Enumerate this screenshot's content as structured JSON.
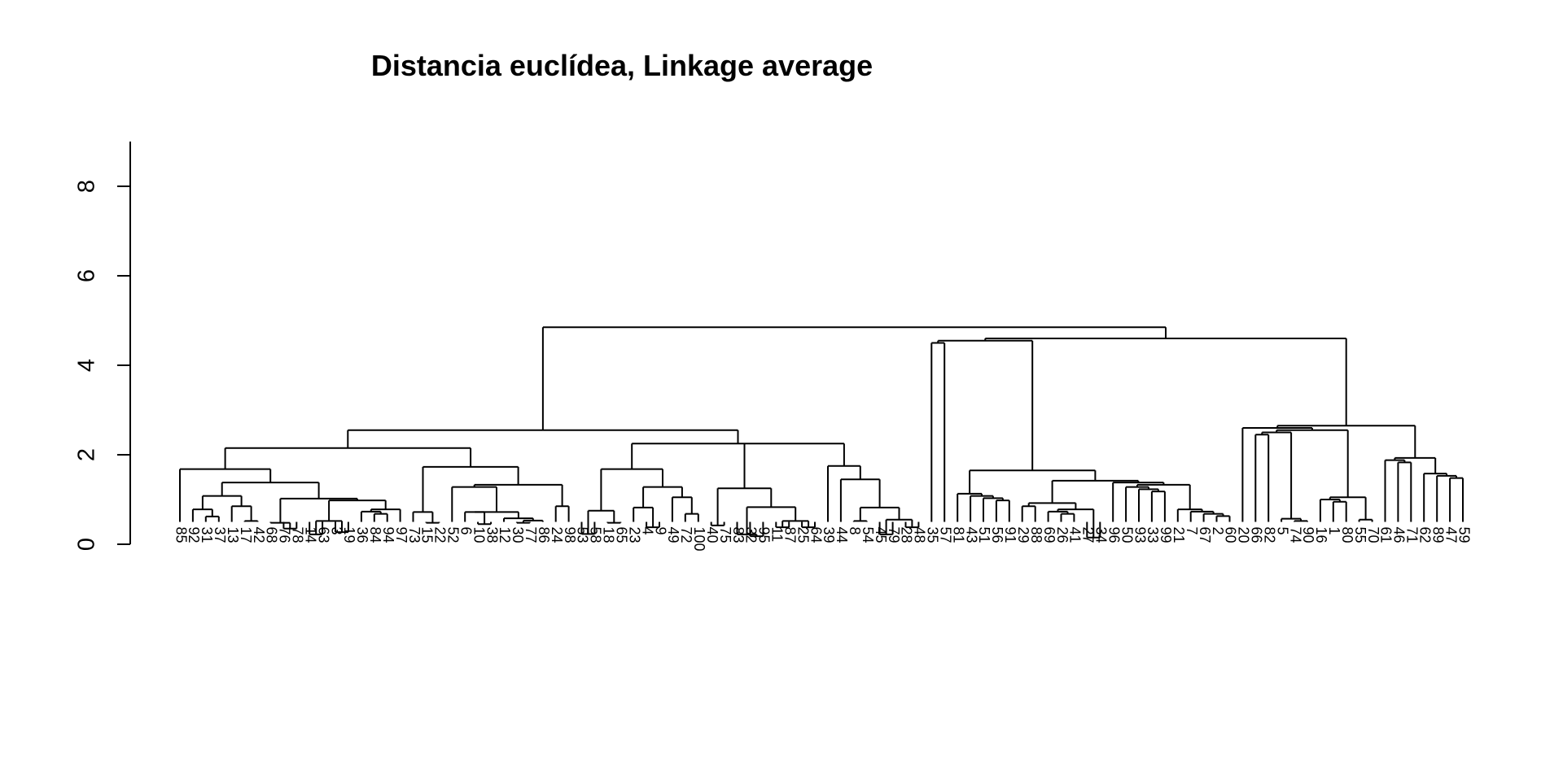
{
  "chart_data": {
    "type": "dendrogram",
    "title": "Distancia euclídea, Linkage average",
    "xlabel": "",
    "ylabel": "",
    "ylim": [
      0,
      9
    ],
    "yticks": [
      0,
      2,
      4,
      6,
      8
    ],
    "leaf_order": [
      "85",
      "92",
      "31",
      "37",
      "13",
      "17",
      "42",
      "68",
      "76",
      "78",
      "14",
      "63",
      "3",
      "19",
      "36",
      "84",
      "94",
      "97",
      "73",
      "15",
      "22",
      "52",
      "6",
      "10",
      "38",
      "12",
      "30",
      "77",
      "86",
      "24",
      "98",
      "53",
      "58",
      "18",
      "65",
      "23",
      "4",
      "9",
      "49",
      "72",
      "100",
      "40",
      "75",
      "83",
      "32",
      "95",
      "11",
      "87",
      "25",
      "64",
      "39",
      "44",
      "8",
      "54",
      "45",
      "79",
      "28",
      "48",
      "35",
      "57",
      "81",
      "43",
      "51",
      "56",
      "91",
      "29",
      "88",
      "69",
      "26",
      "41",
      "27",
      "34",
      "96",
      "50",
      "93",
      "33",
      "99",
      "21",
      "7",
      "67",
      "2",
      "60",
      "20",
      "66",
      "82",
      "5",
      "74",
      "90",
      "16",
      "1",
      "80",
      "55",
      "70",
      "61",
      "46",
      "71",
      "62",
      "89",
      "47",
      "59"
    ],
    "tree": [
      [
        [
          [
            "85",
            [
              [
                [
                  "92",
                  [
                    "31",
                    "37"
                  ]
                ],
                [
                  "13",
                  [
                    "17",
                    "42"
                  ]
                ]
              ],
              [
                [
                  [
                    "68",
                    [
                      "76",
                      "78"
                    ]
                  ],
                  [
                    [
                      [
                        "14",
                        "63"
                      ],
                      [
                        "3",
                        "19"
                      ]
                    ],
                    [
                      [
                        "36",
                        [
                          "84",
                          "94"
                        ]
                      ],
                      "97"
                    ]
                  ]
                ]
              ]
            ]
          ],
          [
            [
              "73",
              [
                "15",
                "22"
              ]
            ],
            [
              [
                "52",
                [
                  [
                    "6",
                    [
                      "10",
                      "38"
                    ]
                  ],
                  [
                    "12",
                    [
                      [
                        "30",
                        "77"
                      ],
                      "86"
                    ]
                  ]
                ]
              ],
              [
                "24",
                "98"
              ]
            ]
          ]
        ],
        [
          [
            [
              [
                [
                  "53",
                  "58"
                ],
                [
                  "18",
                  "65"
                ]
              ],
              [
                [
                  "23",
                  [
                    "4",
                    "9"
                  ]
                ],
                [
                  [
                    "49",
                    [
                      "72",
                      "100"
                    ]
                  ]
                ]
              ]
            ],
            [
              [
                [
                  "40",
                  "75"
                ],
                [
                  [
                    "83",
                    [
                      "32",
                      "95"
                    ]
                  ],
                  [
                    [
                      "11",
                      "87"
                    ],
                    [
                      "25",
                      "64"
                    ]
                  ]
                ]
              ]
            ],
            [
              "39",
              [
                "44",
                [
                  [
                    "8",
                    "54"
                  ],
                  [
                    [
                      "45",
                      "79"
                    ],
                    [
                      "28",
                      "48"
                    ]
                  ]
                ]
              ]
            ]
          ]
        ]
      ],
      [
        [
          [
            "35",
            "57"
          ],
          [
            [
              "81",
              [
                "43",
                [
                  "51",
                  [
                    "56",
                    "91"
                  ]
                ]
              ]
            ],
            [
              [
                [
                  "29",
                  "88"
                ],
                [
                  [
                    [
                      "69",
                      [
                        "26",
                        "41"
                      ]
                    ],
                    [
                      "27",
                      "34"
                    ]
                  ]
                ]
              ],
              [
                "96",
                [
                  [
                    [
                      "50",
                      [
                        "93",
                        [
                          "33",
                          "99"
                        ]
                      ]
                    ],
                    [
                      "21",
                      [
                        "7",
                        [
                          "67",
                          [
                            "2",
                            "60"
                          ]
                        ]
                      ]
                    ]
                  ]
                ]
              ]
            ]
          ]
        ],
        [
          [
            "20",
            [
              [
                [
                  "66",
                  "82"
                ],
                [
                  "5",
                  [
                    "74",
                    "90"
                  ]
                ]
              ],
              [
                [
                  "16",
                  [
                    "1",
                    "80"
                  ]
                ],
                [
                  "55",
                  "70"
                ]
              ]
            ]
          ],
          [
            [
              "61",
              [
                "46",
                "71"
              ]
            ],
            [
              "62",
              [
                "89",
                [
                  "47",
                  "59"
                ]
              ]
            ]
          ]
        ]
      ]
    ]
  }
}
